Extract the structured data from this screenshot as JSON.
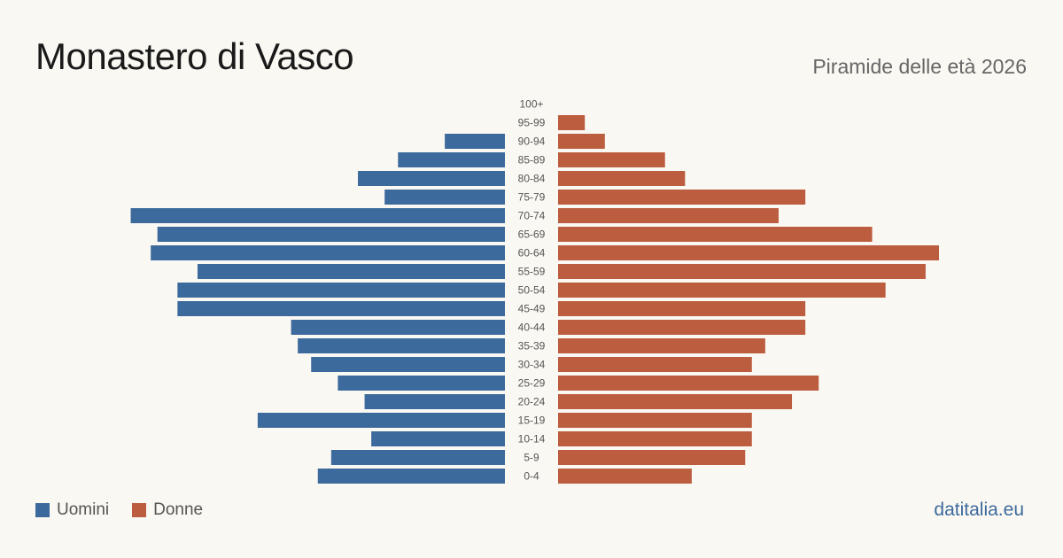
{
  "header": {
    "title": "Monastero di Vasco",
    "subtitle": "Piramide delle età 2026"
  },
  "legend": {
    "men_label": "Uomini",
    "women_label": "Donne"
  },
  "footer": {
    "source": "datitalia.eu"
  },
  "colors": {
    "men": "#3d6a9c",
    "women": "#bb5d3e"
  },
  "chart_data": {
    "type": "bar",
    "orientation": "horizontal-pyramid",
    "categories": [
      "100+",
      "95-99",
      "90-94",
      "85-89",
      "80-84",
      "75-79",
      "70-74",
      "65-69",
      "60-64",
      "55-59",
      "50-54",
      "45-49",
      "40-44",
      "35-39",
      "30-34",
      "25-29",
      "20-24",
      "15-19",
      "10-14",
      "5-9",
      "0-4"
    ],
    "series": [
      {
        "name": "Uomini",
        "values": [
          0,
          0,
          9,
          16,
          22,
          18,
          56,
          52,
          53,
          46,
          49,
          49,
          32,
          31,
          29,
          25,
          21,
          37,
          20,
          26,
          28
        ]
      },
      {
        "name": "Donne",
        "values": [
          0,
          4,
          7,
          16,
          19,
          37,
          33,
          47,
          57,
          55,
          49,
          37,
          37,
          31,
          29,
          39,
          35,
          29,
          29,
          28,
          20
        ]
      }
    ],
    "xlim": [
      0,
      57
    ],
    "grid": false,
    "legend_position": "bottom-left"
  }
}
